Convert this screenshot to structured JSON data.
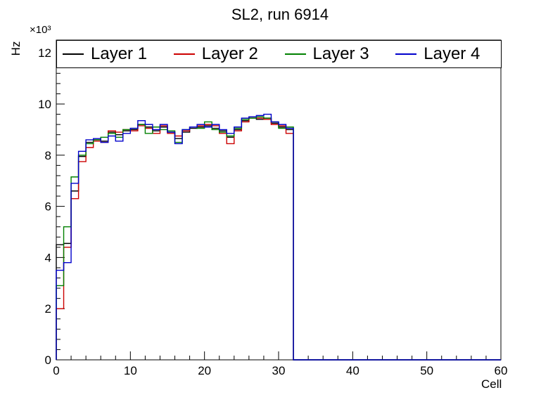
{
  "chart_data": {
    "type": "line",
    "subtype": "step-histogram",
    "title": "SL2, run 6914",
    "xlabel": "Cell",
    "ylabel": "Hz",
    "y_multiplier": "×10³",
    "values_unit": "10^3 Hz",
    "xlim": [
      0,
      60
    ],
    "ylim": [
      0,
      12.5
    ],
    "bin_width": 1,
    "data_end_cell": 32,
    "grid": false,
    "legend_position": "top",
    "x_major_ticks": [
      0,
      10,
      20,
      30,
      40,
      50,
      60
    ],
    "y_major_ticks": [
      0,
      2,
      4,
      6,
      8,
      10,
      12
    ],
    "x_minor_step": 2,
    "y_minor_step": 0.4,
    "series": [
      {
        "name": "Layer 1",
        "color": "#000000",
        "values": [
          4.5,
          4.55,
          6.6,
          7.95,
          8.5,
          8.6,
          8.55,
          8.9,
          8.8,
          8.95,
          9.0,
          9.2,
          9.1,
          8.95,
          9.1,
          8.9,
          8.65,
          8.9,
          9.05,
          9.1,
          9.15,
          9.05,
          8.95,
          8.7,
          9.0,
          9.35,
          9.45,
          9.4,
          9.45,
          9.25,
          9.1,
          9.0
        ]
      },
      {
        "name": "Layer 2",
        "color": "#cc0000",
        "values": [
          2.0,
          4.4,
          6.3,
          7.75,
          8.3,
          8.55,
          8.5,
          8.95,
          8.9,
          9.0,
          8.95,
          9.15,
          9.05,
          8.85,
          9.15,
          8.85,
          8.75,
          8.95,
          9.1,
          9.15,
          9.2,
          9.15,
          8.85,
          8.45,
          8.95,
          9.3,
          9.5,
          9.45,
          9.4,
          9.2,
          9.15,
          8.85
        ]
      },
      {
        "name": "Layer 3",
        "color": "#008000",
        "values": [
          2.9,
          5.2,
          7.15,
          8.0,
          8.45,
          8.6,
          8.7,
          8.85,
          8.7,
          9.0,
          9.05,
          9.2,
          8.85,
          9.1,
          9.0,
          8.95,
          8.5,
          9.0,
          9.1,
          9.05,
          9.3,
          9.0,
          8.9,
          8.75,
          9.05,
          9.4,
          9.45,
          9.5,
          9.45,
          9.3,
          9.05,
          9.1
        ]
      },
      {
        "name": "Layer 4",
        "color": "#0000cc",
        "values": [
          3.5,
          3.8,
          6.9,
          8.15,
          8.6,
          8.65,
          8.5,
          8.75,
          8.55,
          8.85,
          9.05,
          9.35,
          9.2,
          9.0,
          9.2,
          8.9,
          8.45,
          9.0,
          9.1,
          9.2,
          9.1,
          9.2,
          9.0,
          8.85,
          9.1,
          9.45,
          9.5,
          9.55,
          9.6,
          9.3,
          9.2,
          9.05
        ]
      }
    ]
  }
}
